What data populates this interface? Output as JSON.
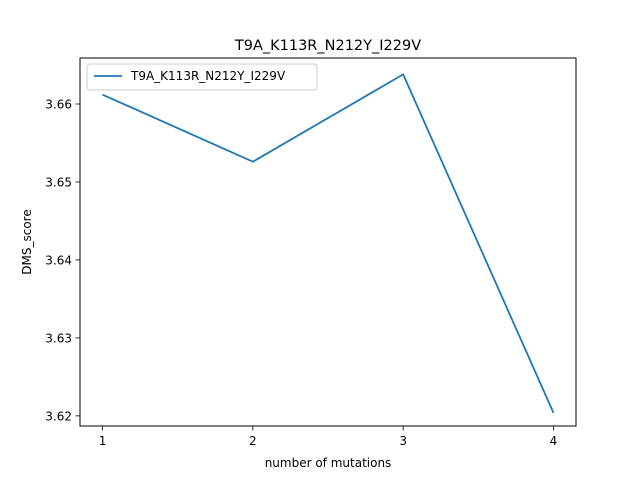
{
  "chart_data": {
    "type": "line",
    "title": "T9A_K113R_N212Y_I229V",
    "xlabel": "number of mutations",
    "ylabel": "DMS_score",
    "x": [
      1,
      2,
      3,
      4
    ],
    "xticks": [
      "1",
      "2",
      "3",
      "4"
    ],
    "xlim": [
      0.85,
      4.15
    ],
    "yticks": [
      "3.62",
      "3.63",
      "3.64",
      "3.65",
      "3.66"
    ],
    "ytick_values": [
      3.62,
      3.63,
      3.64,
      3.65,
      3.66
    ],
    "ylim": [
      3.6187,
      3.6659
    ],
    "series": [
      {
        "name": "T9A_K113R_N212Y_I229V",
        "color": "#1f77b4",
        "values": [
          3.6612,
          3.6526,
          3.6638,
          3.6204
        ]
      }
    ],
    "legend": {
      "position": "top-left"
    },
    "grid": false
  }
}
